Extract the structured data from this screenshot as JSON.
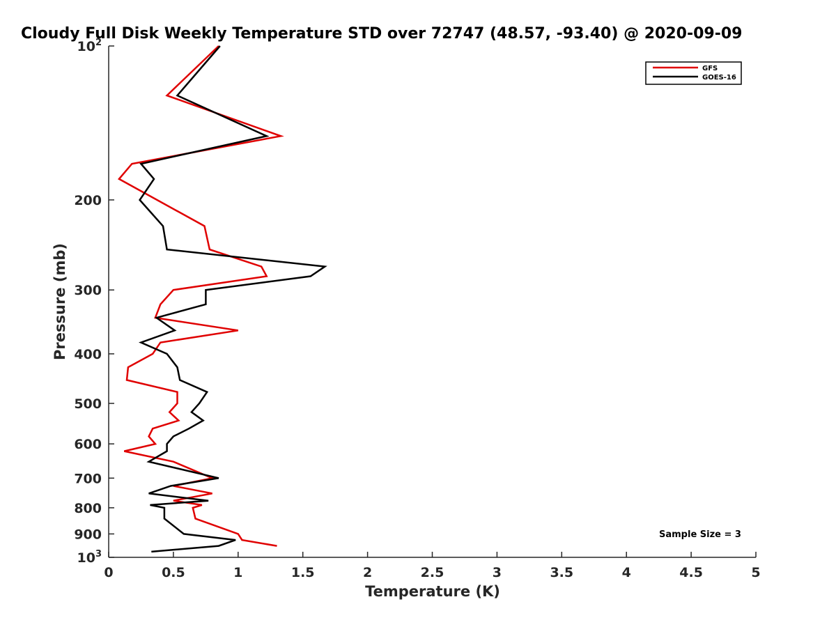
{
  "chart_data": {
    "type": "line",
    "title": "Cloudy Full Disk Weekly Temperature STD over 72747 (48.57, -93.40) @ 2020-09-09",
    "xlabel": "Temperature (K)",
    "ylabel": "Pressure (mb)",
    "xlim": [
      0,
      5
    ],
    "ylim": [
      100,
      1000
    ],
    "y_scale": "log",
    "y_reversed": true,
    "grid": false,
    "legend_position": "top-right",
    "x_ticks": [
      {
        "value": 0,
        "label": "0"
      },
      {
        "value": 0.5,
        "label": "0.5"
      },
      {
        "value": 1,
        "label": "1"
      },
      {
        "value": 1.5,
        "label": "1.5"
      },
      {
        "value": 2,
        "label": "2"
      },
      {
        "value": 2.5,
        "label": "2.5"
      },
      {
        "value": 3,
        "label": "3"
      },
      {
        "value": 3.5,
        "label": "3.5"
      },
      {
        "value": 4,
        "label": "4"
      },
      {
        "value": 4.5,
        "label": "4.5"
      },
      {
        "value": 5,
        "label": "5"
      }
    ],
    "y_ticks": [
      {
        "value": 100,
        "base": "10",
        "exp": "2"
      },
      {
        "value": 200,
        "label": "200"
      },
      {
        "value": 300,
        "label": "300"
      },
      {
        "value": 400,
        "label": "400"
      },
      {
        "value": 500,
        "label": "500"
      },
      {
        "value": 600,
        "label": "600"
      },
      {
        "value": 700,
        "label": "700"
      },
      {
        "value": 800,
        "label": "800"
      },
      {
        "value": 900,
        "label": "900"
      },
      {
        "value": 1000,
        "base": "10",
        "exp": "3"
      }
    ],
    "series": [
      {
        "name": "GFS",
        "color": "#e00000",
        "points": [
          [
            0.85,
            100
          ],
          [
            0.45,
            125
          ],
          [
            1.33,
            150
          ],
          [
            0.18,
            170
          ],
          [
            0.08,
            182
          ],
          [
            0.74,
            225
          ],
          [
            0.78,
            250
          ],
          [
            1.18,
            270
          ],
          [
            1.22,
            282
          ],
          [
            0.5,
            300
          ],
          [
            0.4,
            320
          ],
          [
            0.36,
            340
          ],
          [
            1.0,
            360
          ],
          [
            0.4,
            380
          ],
          [
            0.34,
            400
          ],
          [
            0.15,
            425
          ],
          [
            0.14,
            450
          ],
          [
            0.53,
            475
          ],
          [
            0.53,
            500
          ],
          [
            0.47,
            520
          ],
          [
            0.54,
            540
          ],
          [
            0.34,
            560
          ],
          [
            0.31,
            580
          ],
          [
            0.36,
            600
          ],
          [
            0.12,
            620
          ],
          [
            0.5,
            650
          ],
          [
            0.8,
            700
          ],
          [
            0.5,
            725
          ],
          [
            0.8,
            750
          ],
          [
            0.5,
            775
          ],
          [
            0.72,
            790
          ],
          [
            0.65,
            800
          ],
          [
            0.67,
            840
          ],
          [
            1.0,
            900
          ],
          [
            1.03,
            925
          ],
          [
            1.3,
            950
          ]
        ]
      },
      {
        "name": "GOES-16",
        "color": "#000000",
        "points": [
          [
            0.86,
            100
          ],
          [
            0.53,
            125
          ],
          [
            1.22,
            150
          ],
          [
            0.25,
            170
          ],
          [
            0.35,
            182
          ],
          [
            0.24,
            200
          ],
          [
            0.42,
            225
          ],
          [
            0.45,
            250
          ],
          [
            1.67,
            270
          ],
          [
            1.56,
            282
          ],
          [
            0.75,
            300
          ],
          [
            0.75,
            320
          ],
          [
            0.37,
            340
          ],
          [
            0.51,
            360
          ],
          [
            0.25,
            380
          ],
          [
            0.45,
            400
          ],
          [
            0.53,
            425
          ],
          [
            0.55,
            450
          ],
          [
            0.76,
            475
          ],
          [
            0.7,
            500
          ],
          [
            0.64,
            520
          ],
          [
            0.73,
            540
          ],
          [
            0.62,
            560
          ],
          [
            0.5,
            580
          ],
          [
            0.45,
            600
          ],
          [
            0.45,
            620
          ],
          [
            0.31,
            650
          ],
          [
            0.85,
            700
          ],
          [
            0.48,
            725
          ],
          [
            0.31,
            750
          ],
          [
            0.77,
            775
          ],
          [
            0.32,
            790
          ],
          [
            0.43,
            800
          ],
          [
            0.43,
            840
          ],
          [
            0.58,
            900
          ],
          [
            0.98,
            925
          ],
          [
            0.85,
            950
          ],
          [
            0.33,
            975
          ]
        ]
      }
    ],
    "annotation": "Sample Size = 3"
  }
}
